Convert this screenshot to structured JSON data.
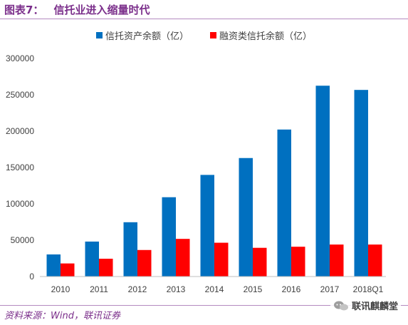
{
  "header": {
    "figure_label": "图表7：",
    "title": "信托业进入缩量时代"
  },
  "source": "资料来源：Wind，联讯证券",
  "watermark": "联讯麒麟堂",
  "colors": {
    "series_1": "#0070c0",
    "series_2": "#ff0000",
    "axis": "#bfbfbf",
    "text": "#404040",
    "brand": "#7b2f8b"
  },
  "chart_data": {
    "type": "bar",
    "title": "",
    "xlabel": "",
    "ylabel": "",
    "categories": [
      "2010",
      "2011",
      "2012",
      "2013",
      "2014",
      "2015",
      "2016",
      "2017",
      "2018Q1"
    ],
    "series": [
      {
        "name": "信托资产余额（亿）",
        "values": [
          30400,
          48100,
          74700,
          109100,
          139800,
          163000,
          202200,
          262500,
          256700
        ]
      },
      {
        "name": "融资类信托余额（亿）",
        "values": [
          18000,
          24500,
          36500,
          51800,
          46500,
          39500,
          41000,
          44000,
          44000
        ]
      }
    ],
    "ylim": [
      0,
      300000
    ],
    "yticks": [
      0,
      50000,
      100000,
      150000,
      200000,
      250000,
      300000
    ],
    "grid": false,
    "legend_position": "top-center"
  }
}
